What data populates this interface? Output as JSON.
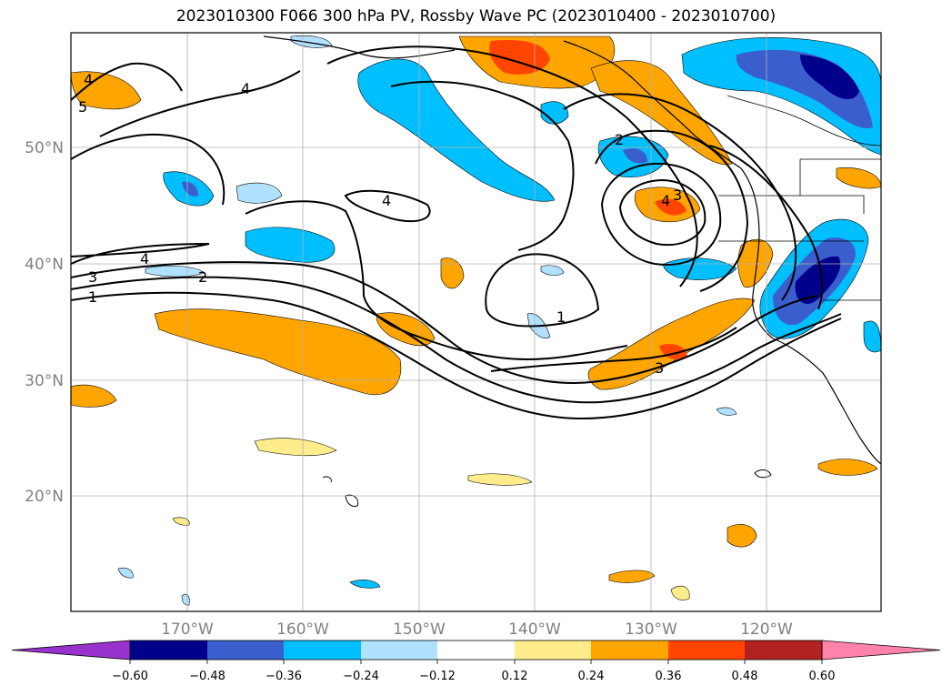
{
  "title": "2023010300 F066 300 hPa PV, Rossby Wave PC (2023010400 - 2023010700)",
  "lat_labels": [
    "50°N",
    "40°N",
    "30°N",
    "20°N"
  ],
  "lon_labels": [
    "170°W",
    "160°W",
    "150°W",
    "140°W",
    "130°W",
    "120°W"
  ],
  "colorbar": {
    "ticks": [
      "−0.60",
      "−0.48",
      "−0.36",
      "−0.24",
      "−0.12",
      "0.12",
      "0.24",
      "0.36",
      "0.48",
      "0.60"
    ],
    "colors": [
      "#9932cc",
      "#00008b",
      "#3a5fcd",
      "#00bfff",
      "#b0e2ff",
      "#ffffff",
      "#ffec8b",
      "#ffa500",
      "#ff4500",
      "#b22222",
      "#ff82ab"
    ]
  },
  "contour_labels": [
    "4",
    "4",
    "5",
    "4",
    "4",
    "3",
    "2",
    "1",
    "2",
    "3",
    "4",
    "1",
    "3"
  ]
}
